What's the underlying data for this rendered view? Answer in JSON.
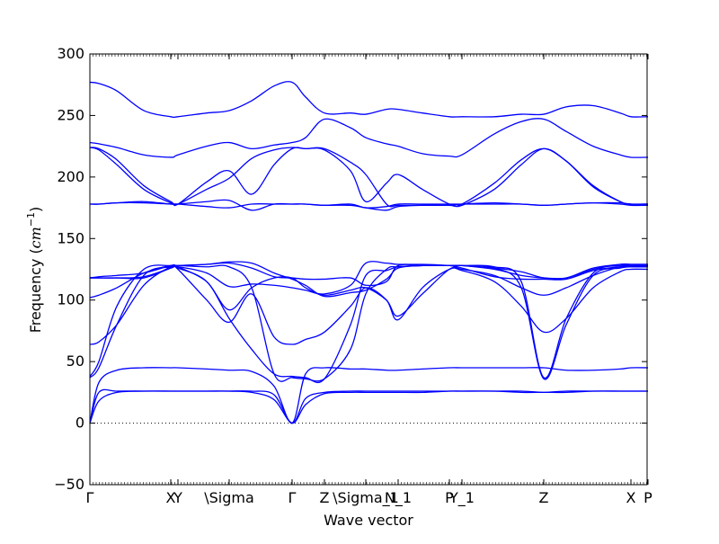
{
  "chart_data": {
    "type": "line",
    "xlabel": "Wave vector",
    "ylabel_text": "Frequency (",
    "ylabel_unit": "cm",
    "ylabel_exp": "−1",
    "ylabel_close": ")",
    "ylim": [
      -50,
      300
    ],
    "yticks": [
      -50,
      0,
      50,
      100,
      150,
      200,
      250,
      300
    ],
    "xlim": [
      0,
      620
    ],
    "xticks": [
      {
        "x": 0,
        "label": "Γ"
      },
      {
        "x": 90,
        "label": "X"
      },
      {
        "x": 98,
        "label": "Y"
      },
      {
        "x": 155,
        "label": "\\Sigma"
      },
      {
        "x": 225,
        "label": "Γ"
      },
      {
        "x": 261,
        "label": "Z"
      },
      {
        "x": 307,
        "label": "\\Sigma_1"
      },
      {
        "x": 343,
        "label": "N_1"
      },
      {
        "x": 400,
        "label": "P"
      },
      {
        "x": 414,
        "label": "Y_1"
      },
      {
        "x": 505,
        "label": "Z"
      },
      {
        "x": 602,
        "label": "X"
      },
      {
        "x": 621,
        "label": "P"
      }
    ],
    "zero_line": true,
    "line_color": "#0000ff",
    "series": [
      {
        "x": [
          0,
          10,
          30,
          60,
          90,
          98,
          130,
          155,
          180,
          205,
          225,
          240,
          261,
          290,
          307,
          330,
          343,
          370,
          400,
          414,
          450,
          480,
          505,
          530,
          560,
          590,
          602,
          621
        ],
        "values": [
          0,
          18,
          25,
          26,
          26,
          26,
          26,
          26,
          25,
          19,
          0,
          15,
          24,
          25,
          25,
          25,
          25,
          25,
          26,
          26,
          26,
          25,
          25,
          25,
          26,
          26,
          26,
          26
        ]
      },
      {
        "x": [
          0,
          10,
          30,
          60,
          90,
          98,
          130,
          155,
          180,
          205,
          225,
          240,
          261,
          290,
          307,
          330,
          343,
          370,
          400,
          414,
          450,
          480,
          505,
          530,
          560,
          590,
          602,
          621
        ],
        "values": [
          0,
          25,
          26,
          26,
          26,
          26,
          26,
          26,
          26,
          23,
          0,
          20,
          25,
          26,
          26,
          26,
          26,
          26,
          26,
          26,
          26,
          26,
          25,
          26,
          26,
          26,
          26,
          26
        ]
      },
      {
        "x": [
          0,
          10,
          30,
          60,
          90,
          98,
          130,
          155,
          180,
          205,
          225,
          240,
          261,
          290,
          307,
          330,
          343,
          370,
          400,
          414,
          450,
          480,
          505,
          530,
          560,
          590,
          602,
          621
        ],
        "values": [
          0,
          33,
          43,
          45,
          45,
          45,
          44,
          43,
          42,
          30,
          0,
          40,
          45,
          44,
          44,
          43,
          43,
          44,
          45,
          45,
          45,
          45,
          45,
          43,
          43,
          44,
          45,
          45
        ]
      },
      {
        "x": [
          0,
          10,
          30,
          60,
          90,
          98,
          130,
          155,
          180,
          205,
          225,
          240,
          261,
          290,
          307,
          330,
          343,
          370,
          400,
          414,
          450,
          480,
          505,
          530,
          560,
          590,
          602,
          621
        ],
        "values": [
          37,
          45,
          80,
          120,
          127,
          126,
          115,
          85,
          60,
          40,
          38,
          37,
          36,
          80,
          120,
          124,
          127,
          128,
          128,
          128,
          126,
          110,
          36,
          80,
          120,
          126,
          127,
          127
        ]
      },
      {
        "x": [
          0,
          10,
          30,
          60,
          90,
          98,
          130,
          155,
          180,
          205,
          225,
          240,
          261,
          290,
          307,
          330,
          343,
          370,
          400,
          414,
          450,
          480,
          505,
          530,
          560,
          590,
          602,
          621
        ],
        "values": [
          38,
          50,
          95,
          125,
          128,
          128,
          127,
          127,
          110,
          40,
          37,
          36,
          36,
          60,
          105,
          125,
          127,
          128,
          128,
          128,
          127,
          115,
          37,
          85,
          122,
          128,
          128,
          128
        ]
      },
      {
        "x": [
          0,
          10,
          30,
          60,
          90,
          98,
          130,
          155,
          180,
          205,
          225,
          240,
          261,
          290,
          307,
          330,
          343,
          370,
          400,
          414,
          450,
          480,
          505,
          530,
          560,
          590,
          602,
          621
        ],
        "values": [
          64,
          66,
          80,
          112,
          127,
          125,
          100,
          82,
          105,
          70,
          64,
          68,
          74,
          95,
          110,
          100,
          84,
          110,
          125,
          124,
          115,
          95,
          74,
          85,
          110,
          123,
          125,
          125
        ]
      },
      {
        "x": [
          0,
          10,
          30,
          60,
          90,
          98,
          130,
          155,
          180,
          205,
          225,
          240,
          261,
          290,
          307,
          330,
          343,
          370,
          400,
          414,
          450,
          480,
          505,
          530,
          560,
          590,
          602,
          621
        ],
        "values": [
          102,
          104,
          110,
          122,
          128,
          127,
          115,
          92,
          110,
          118,
          118,
          110,
          104,
          108,
          110,
          100,
          87,
          105,
          125,
          125,
          120,
          110,
          104,
          110,
          120,
          127,
          128,
          128
        ]
      },
      {
        "x": [
          0,
          10,
          30,
          60,
          90,
          98,
          130,
          155,
          180,
          205,
          225,
          240,
          261,
          290,
          307,
          330,
          343,
          370,
          400,
          414,
          450,
          480,
          505,
          530,
          560,
          590,
          602,
          621
        ],
        "values": [
          118,
          118,
          118,
          118,
          126,
          128,
          129,
          130,
          126,
          119,
          118,
          117,
          117,
          118,
          112,
          115,
          128,
          128,
          128,
          128,
          125,
          120,
          118,
          118,
          125,
          129,
          129,
          129
        ]
      },
      {
        "x": [
          0,
          10,
          30,
          60,
          90,
          98,
          130,
          155,
          180,
          205,
          225,
          240,
          261,
          290,
          307,
          330,
          343,
          370,
          400,
          414,
          450,
          480,
          505,
          530,
          560,
          590,
          602,
          621
        ],
        "values": [
          118,
          119,
          120,
          122,
          128,
          128,
          129,
          131,
          130,
          122,
          117,
          112,
          103,
          106,
          108,
          117,
          126,
          128,
          128,
          128,
          126,
          123,
          118,
          118,
          126,
          129,
          129,
          129
        ]
      },
      {
        "x": [
          0,
          10,
          30,
          60,
          90,
          98,
          130,
          155,
          180,
          205,
          225,
          240,
          261,
          290,
          307,
          330,
          343,
          370,
          400,
          414,
          450,
          480,
          505,
          530,
          560,
          590,
          602,
          621
        ],
        "values": [
          118,
          118,
          118,
          119,
          126,
          127,
          122,
          111,
          113,
          112,
          110,
          108,
          105,
          112,
          130,
          130,
          129,
          129,
          128,
          126,
          119,
          117,
          117,
          117,
          124,
          127,
          127,
          127
        ]
      },
      {
        "x": [
          0,
          10,
          30,
          60,
          90,
          98,
          130,
          155,
          180,
          205,
          225,
          240,
          261,
          290,
          307,
          330,
          343,
          370,
          400,
          414,
          450,
          480,
          505,
          530,
          560,
          590,
          602,
          621
        ],
        "values": [
          178,
          178,
          179,
          179,
          178,
          178,
          176,
          175,
          178,
          178,
          178,
          178,
          177,
          177,
          175,
          173,
          176,
          177,
          177,
          178,
          179,
          178,
          177,
          178,
          179,
          178,
          177,
          177
        ]
      },
      {
        "x": [
          0,
          10,
          30,
          60,
          90,
          98,
          130,
          155,
          180,
          205,
          225,
          240,
          261,
          290,
          307,
          330,
          343,
          370,
          400,
          414,
          450,
          480,
          505,
          530,
          560,
          590,
          602,
          621
        ],
        "values": [
          178,
          178,
          179,
          180,
          178,
          178,
          180,
          181,
          173,
          178,
          178,
          178,
          177,
          178,
          175,
          176,
          178,
          178,
          178,
          178,
          178,
          178,
          177,
          178,
          179,
          179,
          178,
          178
        ]
      },
      {
        "x": [
          0,
          10,
          30,
          60,
          90,
          98,
          130,
          155,
          180,
          205,
          225,
          240,
          261,
          290,
          307,
          330,
          343,
          370,
          400,
          414,
          450,
          480,
          505,
          530,
          560,
          590,
          602,
          621
        ],
        "values": [
          224,
          222,
          210,
          190,
          179,
          178,
          190,
          199,
          215,
          222,
          224,
          223,
          223,
          212,
          202,
          178,
          177,
          177,
          177,
          177,
          190,
          210,
          223,
          213,
          192,
          180,
          178,
          178
        ]
      },
      {
        "x": [
          0,
          10,
          30,
          60,
          90,
          98,
          130,
          155,
          180,
          205,
          225,
          240,
          261,
          290,
          307,
          330,
          343,
          370,
          400,
          414,
          450,
          480,
          505,
          530,
          560,
          590,
          602,
          621
        ],
        "values": [
          224,
          223,
          214,
          193,
          180,
          178,
          196,
          205,
          186,
          210,
          223,
          223,
          222,
          205,
          180,
          195,
          202,
          190,
          178,
          178,
          195,
          214,
          223,
          213,
          193,
          180,
          178,
          178
        ]
      },
      {
        "x": [
          0,
          10,
          30,
          60,
          90,
          98,
          130,
          155,
          180,
          205,
          225,
          240,
          261,
          290,
          307,
          330,
          343,
          370,
          400,
          414,
          450,
          480,
          505,
          530,
          560,
          590,
          602,
          621
        ],
        "values": [
          228,
          227,
          224,
          218,
          216,
          218,
          225,
          228,
          223,
          226,
          228,
          232,
          247,
          240,
          232,
          227,
          225,
          219,
          217,
          218,
          235,
          245,
          247,
          237,
          225,
          218,
          216,
          216
        ]
      },
      {
        "x": [
          0,
          10,
          30,
          60,
          90,
          98,
          130,
          155,
          180,
          205,
          225,
          240,
          261,
          290,
          307,
          330,
          343,
          370,
          400,
          414,
          450,
          480,
          505,
          530,
          560,
          590,
          602,
          621
        ],
        "values": [
          277,
          276,
          270,
          254,
          249,
          249,
          252,
          254,
          262,
          274,
          277,
          265,
          252,
          252,
          251,
          255,
          255,
          252,
          249,
          249,
          249,
          251,
          251,
          257,
          258,
          252,
          249,
          249
        ]
      }
    ]
  }
}
